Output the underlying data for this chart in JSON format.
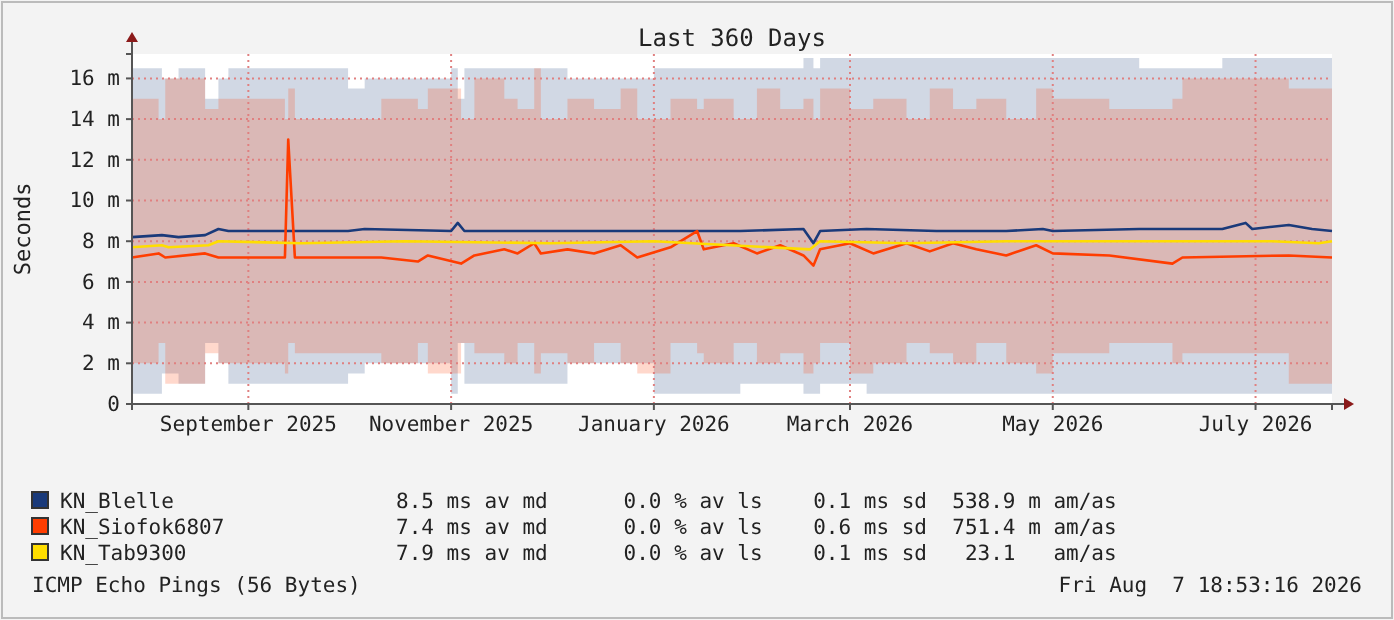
{
  "chart_data": {
    "type": "line",
    "title": "Last 360 Days",
    "ylabel": "Seconds",
    "xlim": [
      "2025-08-11",
      "2026-08-07"
    ],
    "ylim": [
      0,
      17.2
    ],
    "xticks": [
      {
        "value": "2025-09-15",
        "label": "September 2025"
      },
      {
        "value": "2025-11-15",
        "label": "November 2025"
      },
      {
        "value": "2026-01-15",
        "label": "January 2026"
      },
      {
        "value": "2026-03-15",
        "label": "March 2026"
      },
      {
        "value": "2026-05-15",
        "label": "May 2026"
      },
      {
        "value": "2026-07-15",
        "label": "July 2026"
      }
    ],
    "yticks": [
      0,
      {
        "value": 2,
        "label": "2 m"
      },
      {
        "value": 4,
        "label": "4 m"
      },
      {
        "value": 6,
        "label": "6 m"
      },
      {
        "value": 8,
        "label": "8 m"
      },
      {
        "value": 10,
        "label": "10 m"
      },
      {
        "value": 12,
        "label": "12 m"
      },
      {
        "value": 14,
        "label": "14 m"
      },
      {
        "value": 16,
        "label": "16 m"
      }
    ],
    "grid": true,
    "legend": "bottom",
    "line_style": "solid",
    "marker": "none",
    "series": [
      {
        "name": "KN_Blelle",
        "color": "#1a3a7a",
        "x": [
          "2025-08-11",
          "2025-08-20",
          "2025-08-25",
          "2025-09-02",
          "2025-09-06",
          "2025-09-09",
          "2025-10-15",
          "2025-10-20",
          "2025-11-15",
          "2025-11-17",
          "2025-11-19",
          "2025-12-20",
          "2026-01-15",
          "2026-02-10",
          "2026-03-01",
          "2026-03-04",
          "2026-03-06",
          "2026-03-20",
          "2026-04-10",
          "2026-05-01",
          "2026-05-12",
          "2026-05-15",
          "2026-06-10",
          "2026-07-05",
          "2026-07-12",
          "2026-07-14",
          "2026-07-25",
          "2026-08-01",
          "2026-08-07"
        ],
        "values": [
          8.2,
          8.3,
          8.2,
          8.3,
          8.6,
          8.5,
          8.5,
          8.6,
          8.5,
          8.9,
          8.5,
          8.5,
          8.5,
          8.5,
          8.6,
          7.9,
          8.5,
          8.6,
          8.5,
          8.5,
          8.6,
          8.5,
          8.6,
          8.6,
          8.9,
          8.6,
          8.8,
          8.6,
          8.5
        ],
        "lower": [
          0.5,
          1.5,
          1,
          3,
          2,
          1,
          1.5,
          2,
          0.5,
          3,
          1,
          2,
          0.5,
          1,
          0.5,
          0.5,
          1,
          0.5,
          0.5,
          0.5,
          0.5,
          0.5,
          0.5,
          0.5,
          0.5,
          0.5,
          0.5,
          0.5,
          0.5
        ],
        "upper": [
          16.5,
          16,
          16.5,
          15,
          16,
          16.5,
          15.5,
          16,
          16.5,
          15,
          16.5,
          16,
          16.5,
          16.5,
          17,
          16.5,
          17,
          17,
          17,
          17,
          17,
          17,
          16.5,
          17,
          17,
          17,
          17,
          17,
          17
        ]
      },
      {
        "name": "KN_Siofok6807",
        "color": "#ff3d00",
        "x": [
          "2025-08-11",
          "2025-08-19",
          "2025-08-21",
          "2025-09-02",
          "2025-09-06",
          "2025-09-26",
          "2025-09-27",
          "2025-09-29",
          "2025-10-25",
          "2025-11-05",
          "2025-11-08",
          "2025-11-18",
          "2025-11-22",
          "2025-12-01",
          "2025-12-05",
          "2025-12-10",
          "2025-12-12",
          "2025-12-20",
          "2025-12-28",
          "2026-01-05",
          "2026-01-10",
          "2026-01-20",
          "2026-01-28",
          "2026-01-30",
          "2026-02-08",
          "2026-02-15",
          "2026-02-22",
          "2026-03-01",
          "2026-03-04",
          "2026-03-06",
          "2026-03-15",
          "2026-03-22",
          "2026-04-01",
          "2026-04-08",
          "2026-04-15",
          "2026-04-22",
          "2026-05-01",
          "2026-05-10",
          "2026-05-15",
          "2026-06-01",
          "2026-06-20",
          "2026-06-23",
          "2026-07-25",
          "2026-08-07"
        ],
        "values": [
          7.2,
          7.4,
          7.2,
          7.4,
          7.2,
          7.2,
          13.0,
          7.2,
          7.2,
          7.0,
          7.3,
          6.9,
          7.3,
          7.6,
          7.4,
          7.9,
          7.4,
          7.6,
          7.4,
          7.8,
          7.2,
          7.7,
          8.5,
          7.6,
          7.9,
          7.4,
          7.8,
          7.3,
          6.8,
          7.6,
          7.9,
          7.4,
          7.9,
          7.5,
          7.9,
          7.6,
          7.3,
          7.8,
          7.4,
          7.3,
          6.9,
          7.2,
          7.3,
          7.2
        ],
        "lower": [
          2,
          3,
          1,
          2.5,
          2,
          1.5,
          3,
          2.5,
          2,
          3,
          1.5,
          3,
          2.5,
          2,
          3,
          1.5,
          2.5,
          2,
          3,
          2,
          1.5,
          3,
          2.5,
          2,
          3,
          2,
          2.5,
          1.5,
          2,
          3,
          1.5,
          2,
          3,
          2.5,
          2,
          3,
          2,
          1.5,
          2.5,
          3,
          2,
          2.5,
          1,
          2
        ],
        "upper": [
          15,
          14,
          16,
          14.5,
          15,
          14,
          15.5,
          14,
          15,
          14.5,
          15.5,
          14,
          16,
          15,
          14.5,
          16.5,
          14,
          15,
          14.5,
          15.5,
          14,
          15,
          14.5,
          15,
          14,
          15.5,
          14.5,
          15,
          14,
          15.5,
          14.5,
          15,
          14,
          15.5,
          14.5,
          15,
          14,
          15.5,
          15,
          14.5,
          15,
          16,
          15.5,
          14
        ]
      },
      {
        "name": "KN_Tab9300",
        "color": "#ffdd00",
        "x": [
          "2025-08-11",
          "2025-08-20",
          "2025-08-22",
          "2025-09-03",
          "2025-09-06",
          "2025-10-01",
          "2025-11-01",
          "2025-12-15",
          "2026-01-15",
          "2026-03-03",
          "2026-03-06",
          "2026-04-01",
          "2026-05-01",
          "2026-07-20",
          "2026-08-03",
          "2026-08-07"
        ],
        "values": [
          7.7,
          7.8,
          7.7,
          7.8,
          8.0,
          7.9,
          8.0,
          7.9,
          8.0,
          7.6,
          8.0,
          7.9,
          8.0,
          8.0,
          7.9,
          8.0
        ]
      }
    ],
    "annotations": [
      "8.5 ms av md      0.0 % av ls    0.1 ms sd  538.9 m am/as",
      "7.4 ms av md      0.0 % av ls    0.6 ms sd  751.4 m am/as",
      "7.9 ms av md      0.0 % av ls    0.1 ms sd   23.1   am/as",
      "ICMP Echo Pings (56 Bytes)",
      "Fri Aug  7 18:53:16 2026"
    ]
  }
}
